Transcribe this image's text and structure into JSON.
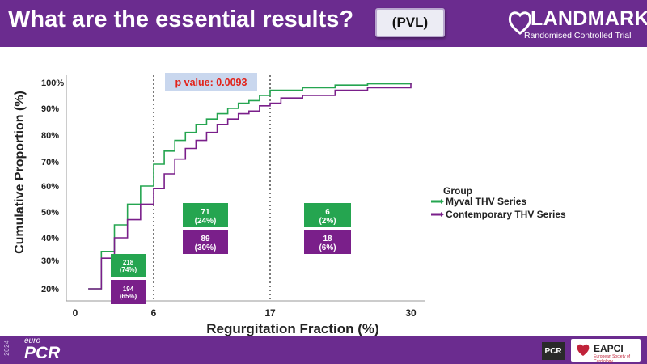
{
  "slide": {
    "title": "What are the essential results?",
    "tag": "(PVL)",
    "logo_name": "LANDMARK",
    "logo_subtitle": "Randomised Controlled Trial"
  },
  "footer": {
    "year": "2024",
    "euro": "euro",
    "pcr": "PCR",
    "pcr_small": "PCR",
    "eapci": "EAPCI",
    "eapci_sub": "European Society of Cardiology"
  },
  "colors": {
    "header": "#6b2c8f",
    "myval": "#25a550",
    "contemporary": "#7a1f8a"
  },
  "chart_data": {
    "type": "line",
    "step": true,
    "xlabel": "Regurgitation Fraction (%)",
    "ylabel": "Cumulative Proportion (%)",
    "xlim": [
      0,
      30
    ],
    "x_ticks": [
      0,
      6,
      17,
      30
    ],
    "y_ticks": [
      "20%",
      "30%",
      "40%",
      "50%",
      "60%",
      "70%",
      "80%",
      "90%",
      "100%"
    ],
    "vlines": [
      6,
      17
    ],
    "p_value": "p value: 0.0093",
    "legend": {
      "title": "Group",
      "position": "right",
      "items": [
        "Myval THV Series",
        "Contemporary THV Series"
      ]
    },
    "series": [
      {
        "name": "Myval THV Series",
        "color": "#25a550",
        "x": [
          1,
          2,
          3,
          4,
          5,
          6,
          7,
          8,
          9,
          10,
          11,
          12,
          13,
          14,
          15,
          16,
          17,
          20,
          23,
          26,
          30
        ],
        "y": [
          20,
          34,
          45,
          53,
          60,
          69,
          74,
          78,
          81,
          84,
          86,
          88,
          90,
          92,
          93,
          95,
          97,
          98,
          99,
          99.5,
          100
        ]
      },
      {
        "name": "Contemporary THV Series",
        "color": "#7a1f8a",
        "x": [
          1,
          2,
          3,
          4,
          5,
          6,
          7,
          8,
          9,
          10,
          11,
          12,
          13,
          14,
          15,
          16,
          17,
          18,
          20,
          23,
          26,
          30
        ],
        "y": [
          19,
          31,
          40,
          47,
          53,
          59,
          65,
          71,
          75,
          78,
          81,
          84,
          86,
          88,
          89,
          91,
          92,
          94,
          95,
          97,
          98,
          100
        ]
      }
    ],
    "annotations": [
      {
        "group": "Myval THV Series",
        "range": "0-6",
        "count": "218",
        "percent": "(74%)"
      },
      {
        "group": "Contemporary THV Series",
        "range": "0-6",
        "count": "194",
        "percent": "(65%)"
      },
      {
        "group": "Myval THV Series",
        "range": "6-17",
        "count": "71",
        "percent": "(24%)"
      },
      {
        "group": "Contemporary THV Series",
        "range": "6-17",
        "count": "89",
        "percent": "(30%)"
      },
      {
        "group": "Myval THV Series",
        "range": "17-30",
        "count": "6",
        "percent": "(2%)"
      },
      {
        "group": "Contemporary THV Series",
        "range": "17-30",
        "count": "18",
        "percent": "(6%)"
      }
    ]
  }
}
